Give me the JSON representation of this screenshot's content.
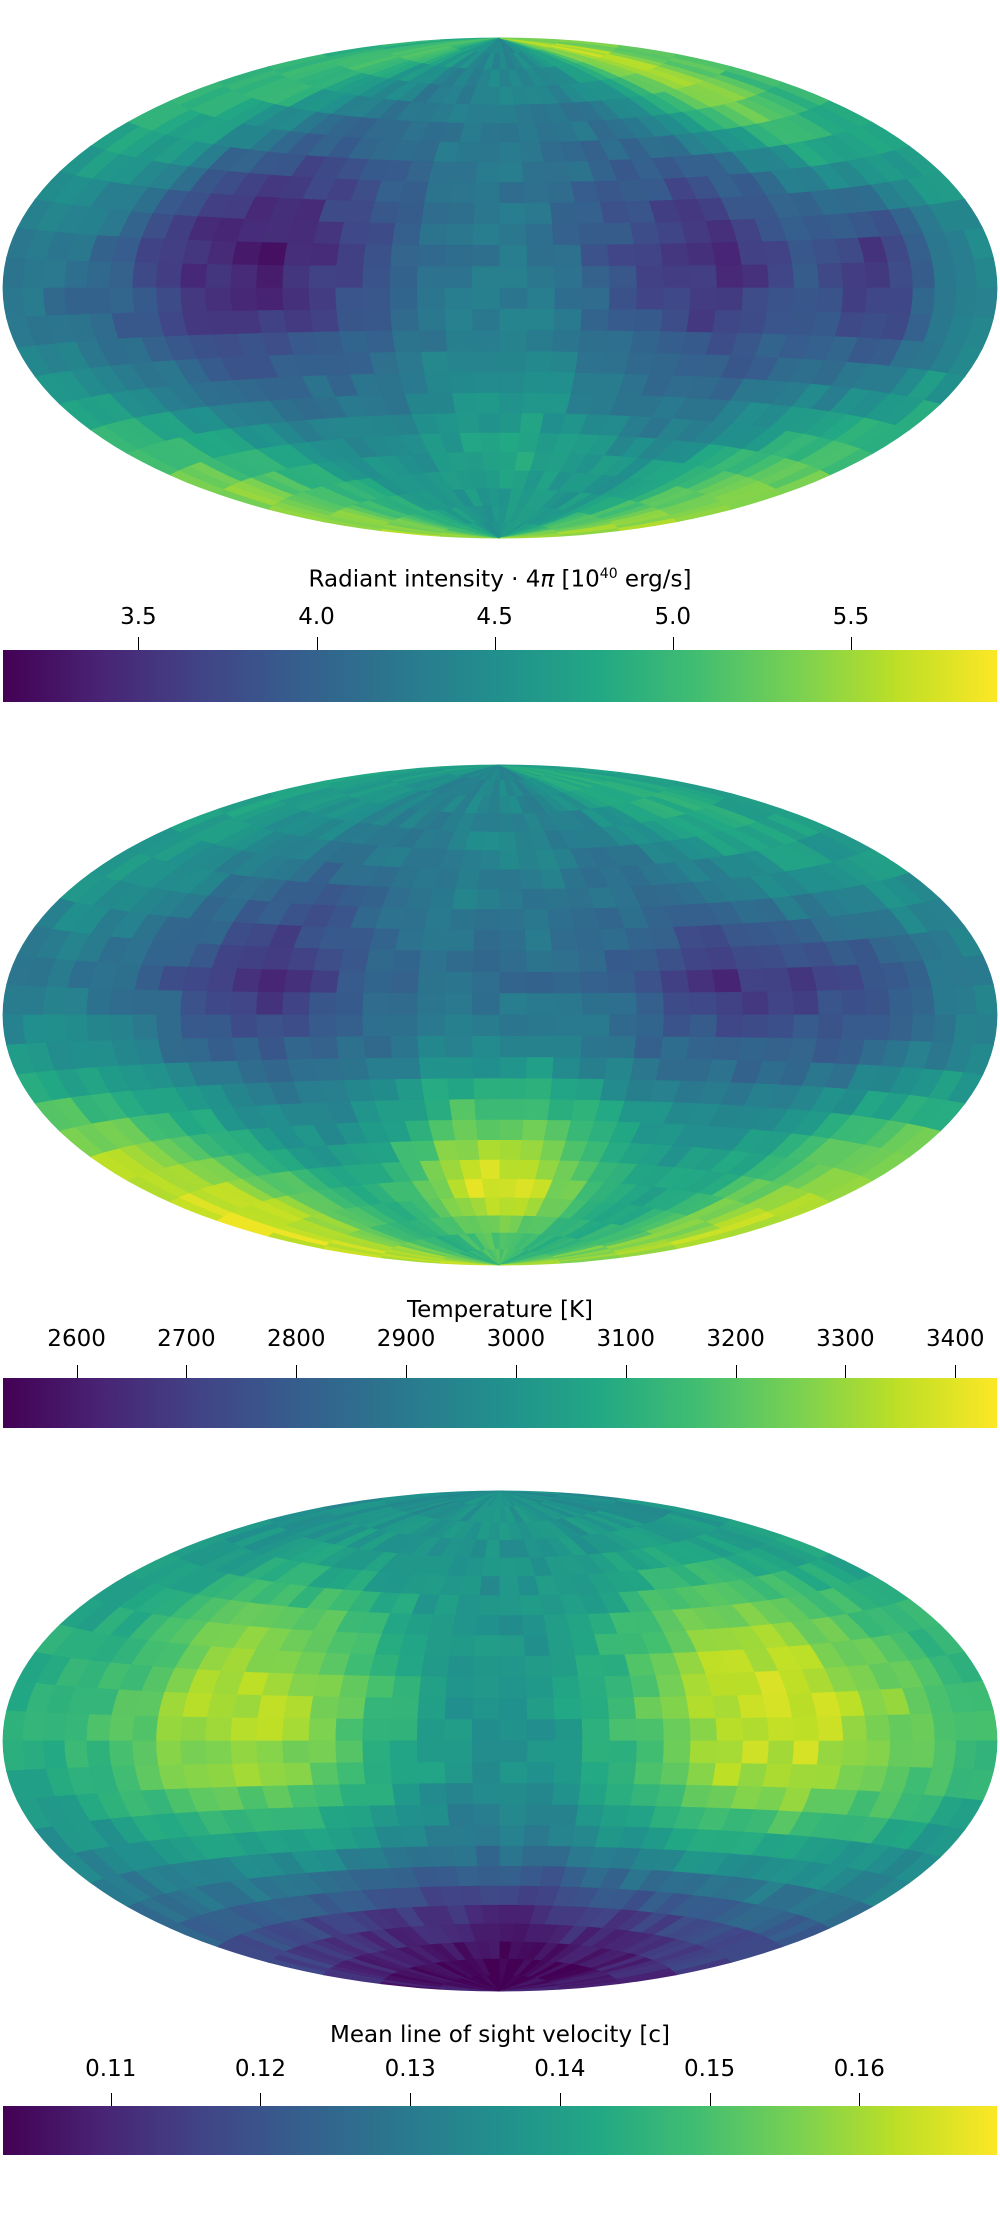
{
  "chart_data": [
    {
      "type": "heatmap",
      "projection": "hammer",
      "title": "Radiant intensity · 4π [10^40 erg/s]",
      "colorbar": {
        "label_main": "Radiant intensity · 4",
        "label_pi": "π",
        "label_open": " [10",
        "label_exp": "40",
        "label_unit": " erg/s]",
        "range": [
          3.12,
          5.91
        ],
        "ticks": [
          "3.5",
          "4.0",
          "4.5",
          "5.0",
          "5.5"
        ],
        "tick_values": [
          3.5,
          4.0,
          4.5,
          5.0,
          5.5
        ],
        "colormap": "viridis"
      },
      "grid_lat_rows_north_to_south": 8,
      "grid_lon_cols_west_to_east": 12,
      "values": [
        [
          4.9,
          5.1,
          5.0,
          4.7,
          4.5,
          4.4,
          4.4,
          4.5,
          4.8,
          5.4,
          5.7,
          5.3
        ],
        [
          5.0,
          5.0,
          4.5,
          4.2,
          4.1,
          4.3,
          4.3,
          4.2,
          4.4,
          5.0,
          5.5,
          5.0
        ],
        [
          4.7,
          4.4,
          3.8,
          3.6,
          3.9,
          4.2,
          4.2,
          3.9,
          3.8,
          4.2,
          4.6,
          4.7
        ],
        [
          4.3,
          4.0,
          3.5,
          3.3,
          3.7,
          4.2,
          4.2,
          3.7,
          3.4,
          3.8,
          3.5,
          4.4
        ],
        [
          4.2,
          4.0,
          3.6,
          3.6,
          3.9,
          4.3,
          4.3,
          3.9,
          3.6,
          3.9,
          3.7,
          4.3
        ],
        [
          4.8,
          4.5,
          4.2,
          4.1,
          4.2,
          4.5,
          4.5,
          4.2,
          4.1,
          4.3,
          4.5,
          4.8
        ],
        [
          5.4,
          5.1,
          4.8,
          4.5,
          4.5,
          4.7,
          4.8,
          4.6,
          4.5,
          4.8,
          5.2,
          5.4
        ],
        [
          5.5,
          5.3,
          5.0,
          4.8,
          4.6,
          4.6,
          4.6,
          4.6,
          4.7,
          5.0,
          5.3,
          5.5
        ]
      ]
    },
    {
      "type": "heatmap",
      "projection": "hammer",
      "title": "Temperature [K]",
      "colorbar": {
        "label_main": "Temperature [K]",
        "range": [
          2533,
          3438
        ],
        "ticks": [
          "2600",
          "2700",
          "2800",
          "2900",
          "3000",
          "3100",
          "3200",
          "3300",
          "3400"
        ],
        "tick_values": [
          2600,
          2700,
          2800,
          2900,
          3000,
          3100,
          3200,
          3300,
          3400
        ],
        "colormap": "viridis"
      },
      "grid_lat_rows_north_to_south": 8,
      "grid_lon_cols_west_to_east": 12,
      "values": [
        [
          3050,
          3050,
          3000,
          2950,
          2950,
          2950,
          2950,
          2950,
          3050,
          3100,
          3100,
          3050
        ],
        [
          3050,
          3000,
          2950,
          2900,
          2900,
          2950,
          2950,
          2900,
          2950,
          3050,
          3100,
          3050
        ],
        [
          3000,
          2950,
          2850,
          2750,
          2850,
          2900,
          2900,
          2850,
          2800,
          2900,
          2950,
          3000
        ],
        [
          2900,
          2850,
          2750,
          2630,
          2800,
          2850,
          2850,
          2800,
          2650,
          2700,
          2750,
          2900
        ],
        [
          3000,
          2950,
          2850,
          2800,
          2850,
          2950,
          2950,
          2850,
          2800,
          2800,
          2850,
          2950
        ],
        [
          3300,
          3200,
          3050,
          2950,
          3000,
          3200,
          3200,
          3050,
          2950,
          3000,
          3150,
          3250
        ],
        [
          3400,
          3350,
          3200,
          3050,
          3200,
          3400,
          3400,
          3200,
          3050,
          3100,
          3250,
          3350
        ],
        [
          3350,
          3300,
          3200,
          3100,
          3150,
          3200,
          3200,
          3150,
          3100,
          3150,
          3250,
          3300
        ]
      ]
    },
    {
      "type": "heatmap",
      "projection": "hammer",
      "title": "Mean line of sight velocity [c]",
      "colorbar": {
        "label_main": "Mean line of sight velocity [c]",
        "range": [
          0.1028,
          0.1692
        ],
        "ticks": [
          "0.11",
          "0.12",
          "0.13",
          "0.14",
          "0.15",
          "0.16"
        ],
        "tick_values": [
          0.11,
          0.12,
          0.13,
          0.14,
          0.15,
          0.16
        ],
        "colormap": "viridis"
      },
      "grid_lat_rows_north_to_south": 8,
      "grid_lon_cols_west_to_east": 12,
      "values": [
        [
          0.135,
          0.135,
          0.135,
          0.136,
          0.137,
          0.137,
          0.137,
          0.137,
          0.136,
          0.136,
          0.135,
          0.135
        ],
        [
          0.138,
          0.14,
          0.142,
          0.14,
          0.138,
          0.136,
          0.136,
          0.138,
          0.142,
          0.143,
          0.142,
          0.14
        ],
        [
          0.142,
          0.146,
          0.155,
          0.156,
          0.146,
          0.138,
          0.138,
          0.146,
          0.158,
          0.16,
          0.152,
          0.145
        ],
        [
          0.145,
          0.15,
          0.16,
          0.163,
          0.15,
          0.138,
          0.138,
          0.15,
          0.163,
          0.165,
          0.158,
          0.148
        ],
        [
          0.142,
          0.148,
          0.156,
          0.158,
          0.148,
          0.136,
          0.136,
          0.148,
          0.16,
          0.162,
          0.155,
          0.146
        ],
        [
          0.132,
          0.135,
          0.14,
          0.14,
          0.135,
          0.13,
          0.13,
          0.135,
          0.14,
          0.141,
          0.138,
          0.134
        ],
        [
          0.12,
          0.12,
          0.118,
          0.116,
          0.115,
          0.112,
          0.112,
          0.115,
          0.116,
          0.118,
          0.12,
          0.12
        ],
        [
          0.108,
          0.106,
          0.105,
          0.104,
          0.104,
          0.103,
          0.103,
          0.104,
          0.104,
          0.105,
          0.106,
          0.108
        ]
      ]
    }
  ]
}
